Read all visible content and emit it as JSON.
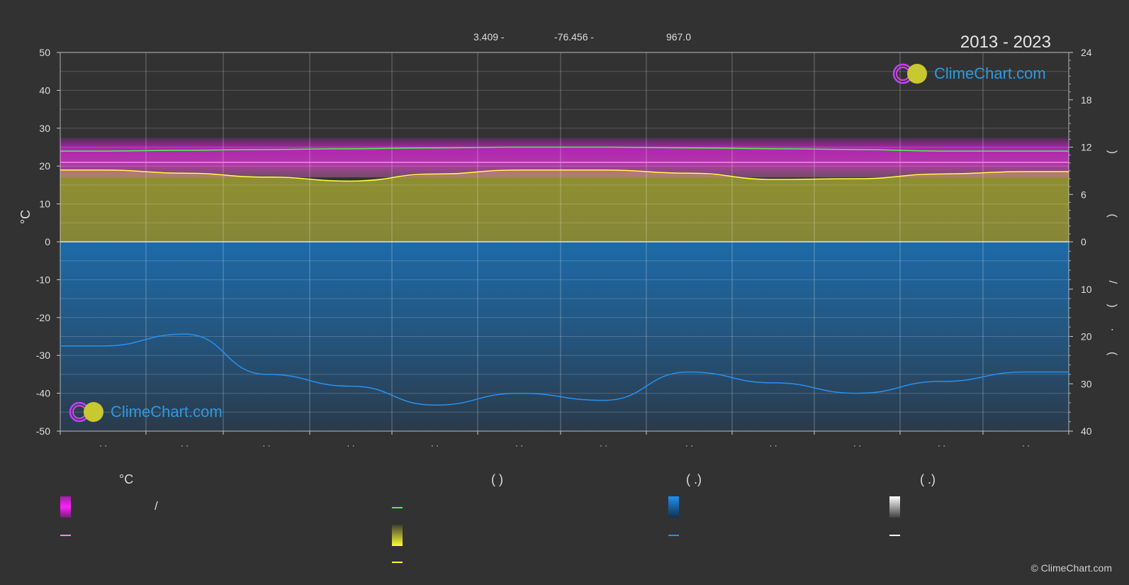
{
  "header": {
    "lat": "3.409 -",
    "lon": "-76.456 -",
    "elevation": "967.0",
    "years": "2013 - 2023"
  },
  "brand": {
    "name": "ClimeChart.com",
    "copyright": "© ClimeChart.com"
  },
  "colors": {
    "background": "#323232",
    "temp_band": "#e020e0",
    "sunshine_band": "#b0b040",
    "precip_band": "#1e6eb0",
    "mean_temp_line": "#ff80ff",
    "daylight_line": "#40ff40",
    "sunshine_line": "#ffff40",
    "precip_line": "#2890f0",
    "snow_line": "#ffffff"
  },
  "chart_data": {
    "type": "area",
    "x_categories": [
      "· ·",
      "· ·",
      "· ·",
      "· ·",
      "· ·",
      "· ·",
      "· ·",
      "· ·",
      "· ·",
      "· ·",
      "· ·",
      "· ·"
    ],
    "left_axis": {
      "label": "°C",
      "ylim": [
        -50,
        50
      ],
      "ticks": [
        50,
        40,
        30,
        20,
        10,
        0,
        -10,
        -20,
        -30,
        -40,
        -50
      ]
    },
    "right_axis_top": {
      "ylim": [
        0,
        24
      ],
      "ticks": [
        24,
        18,
        12,
        6,
        0
      ],
      "label_marks": ")  ("
    },
    "right_axis_bottom": {
      "ylim": [
        0,
        40
      ],
      "ticks": [
        0,
        10,
        20,
        30,
        40
      ],
      "label_marks": "/  )  ·  ("
    },
    "grid": true,
    "series": [
      {
        "values_hours": [
          11.5,
          11.6,
          11.7,
          11.8,
          11.9,
          12.0,
          12.0,
          11.9,
          11.8,
          11.7,
          11.5,
          11.5
        ]
      },
      {
        "values_hours": [
          9.1,
          8.7,
          8.2,
          7.7,
          8.6,
          9.1,
          9.1,
          8.7,
          7.9,
          8.0,
          8.6,
          8.9
        ]
      },
      {
        "values_mm_bottom_axis": [
          22,
          19.5,
          28,
          30.5,
          34.5,
          32,
          33.5,
          27.5,
          29.8,
          32,
          29.5,
          27.5
        ]
      }
    ],
    "temp_band_c": {
      "min_max": [
        19,
        26
      ]
    },
    "mean_temp_c": 21
  },
  "legend": {
    "col1": {
      "head": "°C",
      "slash": "/"
    },
    "col2": {
      "head": "(          )"
    },
    "col3": {
      "head": "(   .)"
    },
    "col4": {
      "head": "(   .)"
    }
  }
}
